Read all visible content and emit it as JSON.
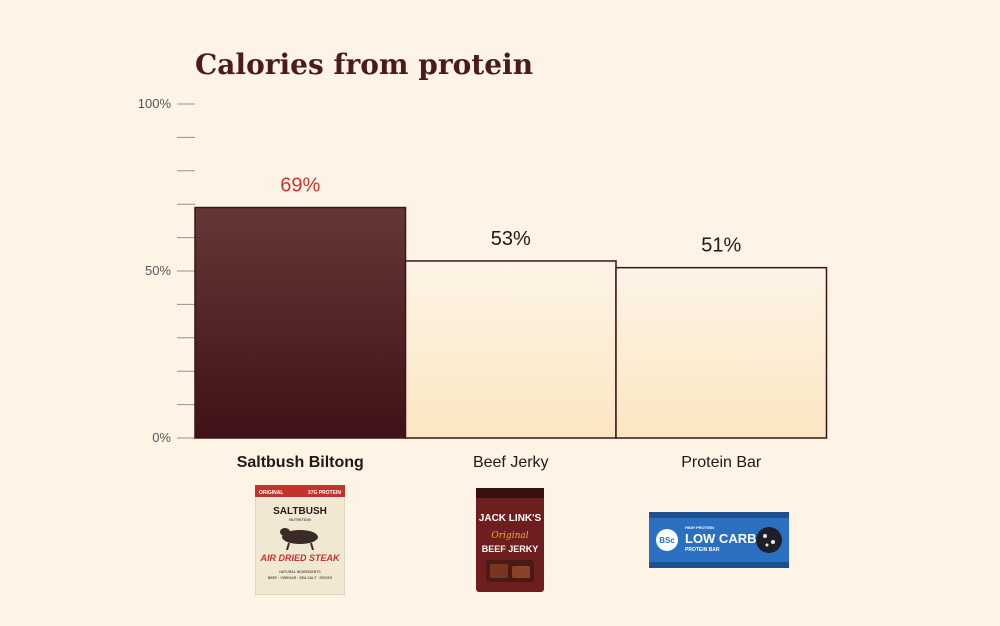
{
  "chart_data": {
    "type": "bar",
    "title": "Calories from protein",
    "categories": [
      "Saltbush Biltong",
      "Beef Jerky",
      "Protein Bar"
    ],
    "values": [
      69,
      53,
      51
    ],
    "value_labels": [
      "69%",
      "53%",
      "51%"
    ],
    "ylim": [
      0,
      100
    ],
    "y_tick_labels": [
      {
        "value": 0,
        "label": "0%"
      },
      {
        "value": 50,
        "label": "50%"
      },
      {
        "value": 100,
        "label": "100%"
      }
    ],
    "minor_tick_step": 10,
    "grid": false,
    "highlight_category": "Saltbush Biltong",
    "colors": {
      "highlight_bar_top": "#653735",
      "highlight_bar_bottom": "#3f1217",
      "bar_top": "#fdf4e6",
      "bar_bottom": "#fbe6c2",
      "bar_outline": "#3f1217",
      "highlight_label": "#cc3333",
      "label": "#2a1416",
      "title": "#4a1a1c",
      "axis": "#555555"
    }
  },
  "products": [
    {
      "name": "saltbush-package",
      "brand": "SALTBUSH",
      "sub": "NUTRITION",
      "flag_left": "ORIGINAL",
      "flag_right": "37G PROTEIN",
      "headline": "AIR DRIED STEAK",
      "footer": "NATURAL INGREDIENTS",
      "ingredients": "BEEF · VINEGAR · SEA SALT · SPICES"
    },
    {
      "name": "jack-links-package",
      "brand": "JACK LINK'S",
      "script": "Original",
      "headline": "BEEF JERKY"
    },
    {
      "name": "bsc-protein-bar",
      "logo": "BSc",
      "tag": "HIGH PROTEIN",
      "headline": "LOW CARB",
      "sub": "PROTEIN BAR"
    }
  ]
}
